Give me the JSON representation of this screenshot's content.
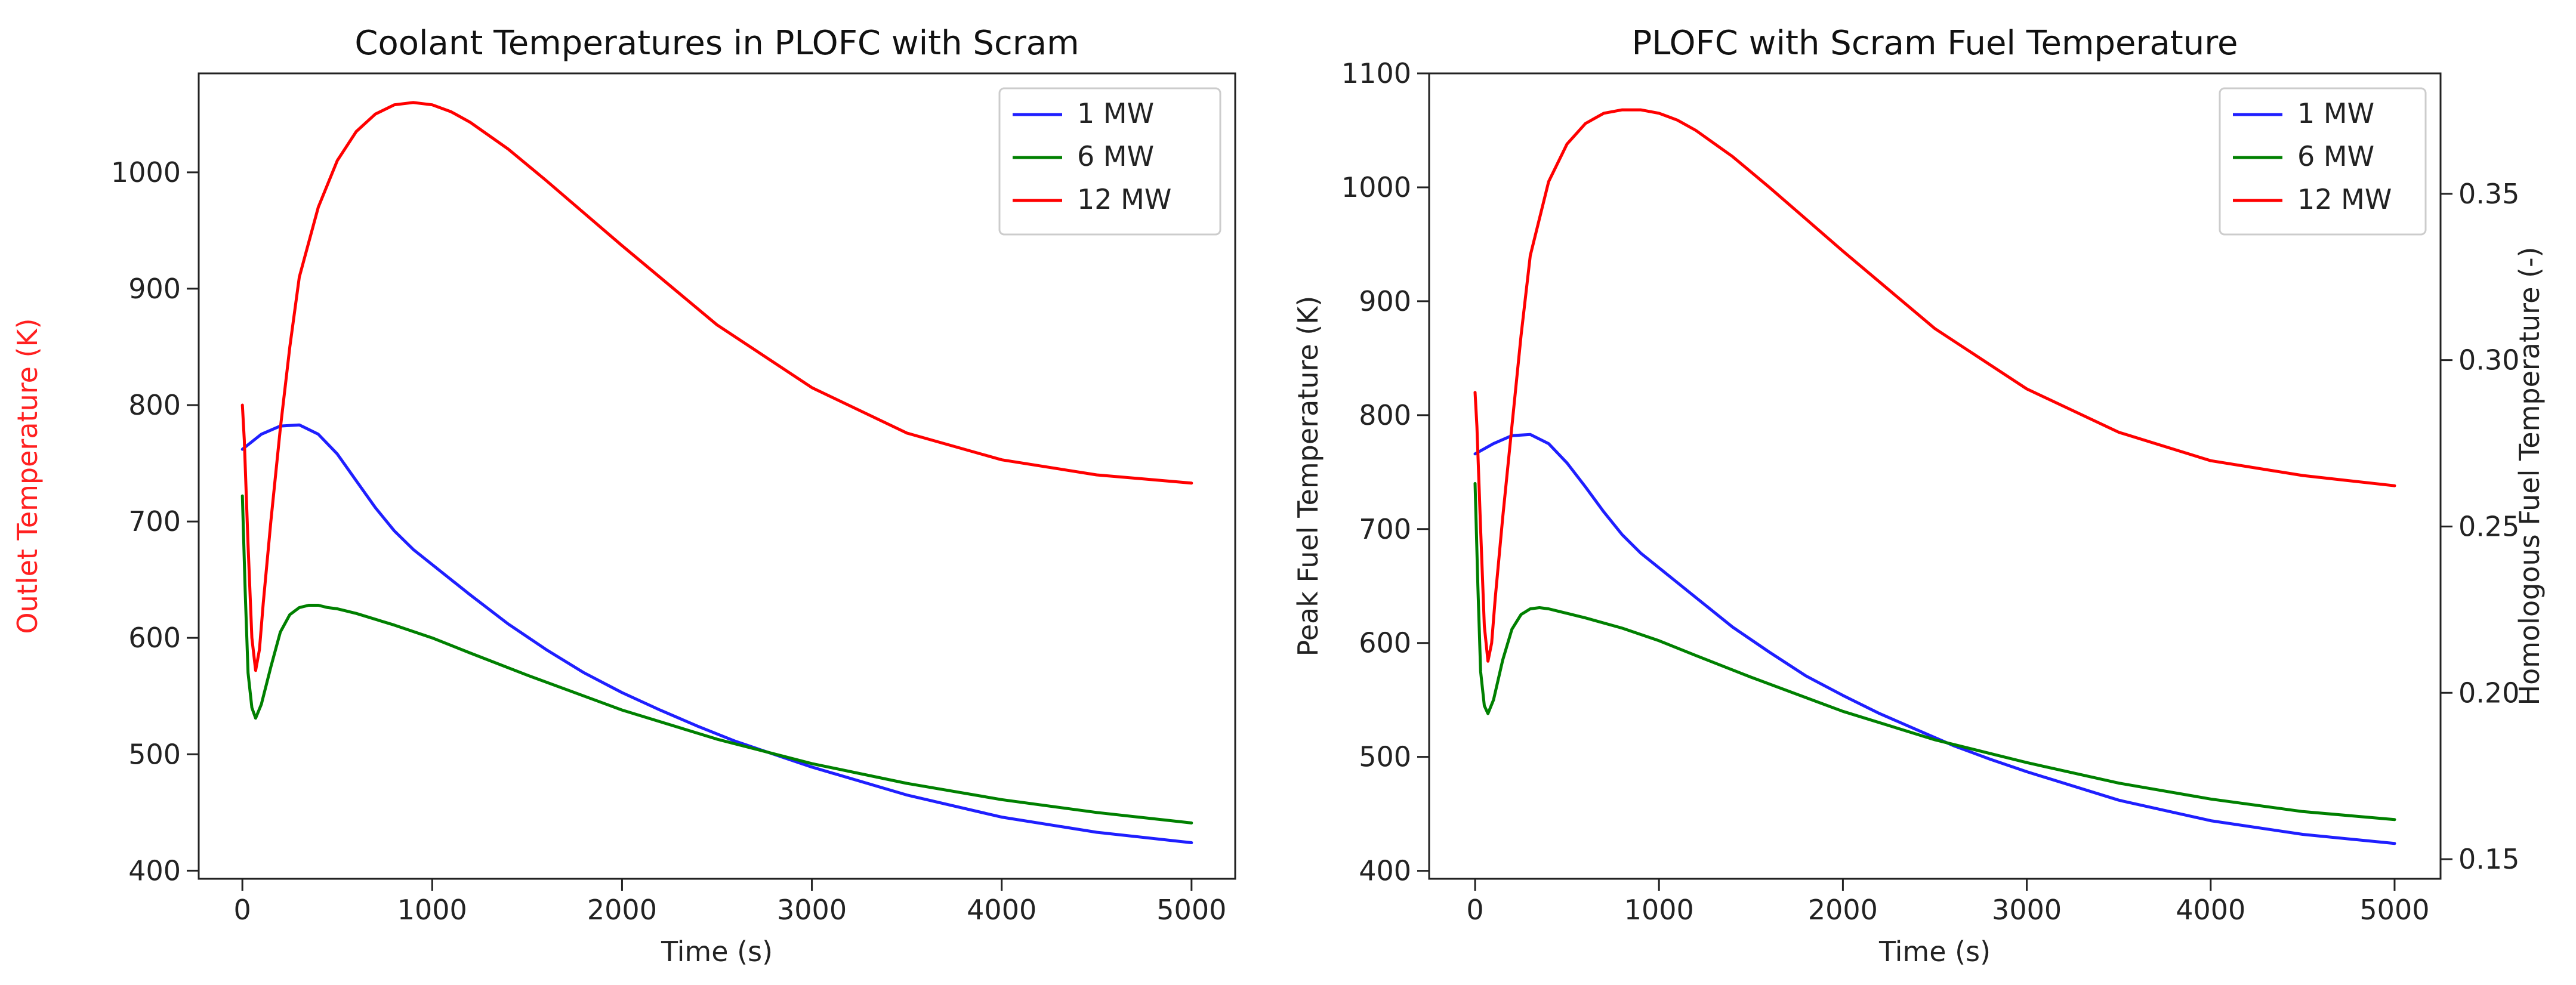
{
  "chart_data": [
    {
      "type": "line",
      "title": "Coolant Temperatures in PLOFC with Scram",
      "xlabel": "Time (s)",
      "ylabel": "Outlet Temperature (K)",
      "ylabel_color": "#ff2020",
      "xlim": [
        -230,
        5230
      ],
      "ylim": [
        393,
        1085
      ],
      "xticks": [
        0,
        1000,
        2000,
        3000,
        4000,
        5000
      ],
      "yticks": [
        400,
        500,
        600,
        700,
        800,
        900,
        1000
      ],
      "legend_position": "upper right",
      "series": [
        {
          "name": "1 MW",
          "color": "#1f1fff",
          "x": [
            0,
            100,
            200,
            300,
            400,
            500,
            600,
            700,
            800,
            900,
            1000,
            1200,
            1400,
            1600,
            1800,
            2000,
            2200,
            2400,
            2600,
            2800,
            3000,
            3500,
            4000,
            4500,
            5000
          ],
          "y": [
            762,
            775,
            782,
            783,
            775,
            758,
            735,
            712,
            692,
            676,
            663,
            637,
            612,
            590,
            570,
            553,
            538,
            524,
            511,
            500,
            489,
            465,
            446,
            433,
            424
          ]
        },
        {
          "name": "6 MW",
          "color": "#008000",
          "x": [
            0,
            15,
            30,
            50,
            70,
            100,
            150,
            200,
            250,
            300,
            350,
            400,
            450,
            500,
            600,
            800,
            1000,
            1200,
            1500,
            2000,
            2500,
            3000,
            3500,
            4000,
            4500,
            5000
          ],
          "y": [
            722,
            640,
            570,
            540,
            531,
            543,
            575,
            605,
            620,
            626,
            628,
            628,
            626,
            625,
            621,
            611,
            600,
            587,
            568,
            538,
            513,
            492,
            475,
            461,
            450,
            441
          ]
        },
        {
          "name": "12 MW",
          "color": "#ff0000",
          "x": [
            0,
            10,
            30,
            50,
            70,
            90,
            110,
            150,
            200,
            250,
            300,
            400,
            500,
            600,
            700,
            800,
            900,
            1000,
            1100,
            1200,
            1400,
            1600,
            1800,
            2000,
            2500,
            3000,
            3500,
            4000,
            4500,
            5000
          ],
          "y": [
            800,
            770,
            680,
            600,
            572,
            590,
            630,
            700,
            780,
            850,
            910,
            970,
            1010,
            1035,
            1050,
            1058,
            1060,
            1058,
            1052,
            1043,
            1020,
            993,
            965,
            937,
            869,
            815,
            776,
            753,
            740,
            733
          ]
        }
      ]
    },
    {
      "type": "line",
      "title": "PLOFC with Scram Fuel Temperature",
      "xlabel": "Time (s)",
      "ylabel": "Peak Fuel Temperature (K)",
      "y2label": "Homologous Fuel Temperature (-)",
      "xlim": [
        -250,
        5250
      ],
      "ylim": [
        393,
        1100
      ],
      "y2lim": [
        0.1441,
        0.3862
      ],
      "xticks": [
        0,
        1000,
        2000,
        3000,
        4000,
        5000
      ],
      "yticks": [
        400,
        500,
        600,
        700,
        800,
        900,
        1000,
        1100
      ],
      "y2ticks": [
        0.15,
        0.2,
        0.25,
        0.3,
        0.35
      ],
      "y2ticklabels": [
        "0.15",
        "0.20",
        "0.25",
        "0.30",
        "0.35"
      ],
      "legend_position": "upper right",
      "series": [
        {
          "name": "1 MW",
          "color": "#1f1fff",
          "x": [
            0,
            100,
            200,
            300,
            400,
            500,
            600,
            700,
            800,
            900,
            1000,
            1200,
            1400,
            1600,
            1800,
            2000,
            2200,
            2400,
            2600,
            2800,
            3000,
            3500,
            4000,
            4500,
            5000
          ],
          "y": [
            766,
            775,
            782,
            783,
            775,
            758,
            737,
            715,
            695,
            679,
            666,
            640,
            614,
            592,
            571,
            554,
            538,
            524,
            510,
            498,
            487,
            462,
            444,
            432,
            424
          ]
        },
        {
          "name": "6 MW",
          "color": "#008000",
          "x": [
            0,
            15,
            30,
            50,
            70,
            100,
            150,
            200,
            250,
            300,
            350,
            400,
            450,
            500,
            600,
            800,
            1000,
            1200,
            1500,
            2000,
            2500,
            3000,
            3500,
            4000,
            4500,
            5000
          ],
          "y": [
            740,
            650,
            575,
            545,
            538,
            550,
            585,
            612,
            625,
            630,
            631,
            630,
            628,
            626,
            622,
            613,
            602,
            589,
            570,
            540,
            515,
            495,
            477,
            463,
            452,
            445
          ]
        },
        {
          "name": "12 MW",
          "color": "#ff0000",
          "x": [
            0,
            10,
            30,
            50,
            70,
            90,
            110,
            150,
            200,
            250,
            300,
            400,
            500,
            600,
            700,
            800,
            900,
            1000,
            1100,
            1200,
            1400,
            1600,
            1800,
            2000,
            2500,
            3000,
            3500,
            4000,
            4500,
            5000
          ],
          "y": [
            820,
            790,
            700,
            615,
            584,
            600,
            640,
            710,
            790,
            870,
            940,
            1005,
            1038,
            1056,
            1065,
            1068,
            1068,
            1065,
            1059,
            1050,
            1027,
            1000,
            972,
            944,
            876,
            823,
            785,
            760,
            747,
            738
          ]
        }
      ]
    }
  ]
}
